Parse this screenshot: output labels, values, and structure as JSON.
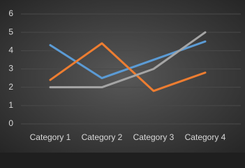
{
  "chart_data": {
    "type": "line",
    "categories": [
      "Category 1",
      "Category 2",
      "Category 3",
      "Category 4"
    ],
    "series": [
      {
        "color": "#5b9bd5",
        "values": [
          4.3,
          2.5,
          3.5,
          4.5
        ]
      },
      {
        "color": "#ed7d31",
        "values": [
          2.4,
          4.4,
          1.8,
          2.8
        ]
      },
      {
        "color": "#a5a5a5",
        "values": [
          2,
          2,
          3,
          5
        ]
      }
    ],
    "ylim": [
      0,
      6
    ],
    "yticks": [
      0,
      1,
      2,
      3,
      4,
      5,
      6
    ],
    "grid": true
  }
}
